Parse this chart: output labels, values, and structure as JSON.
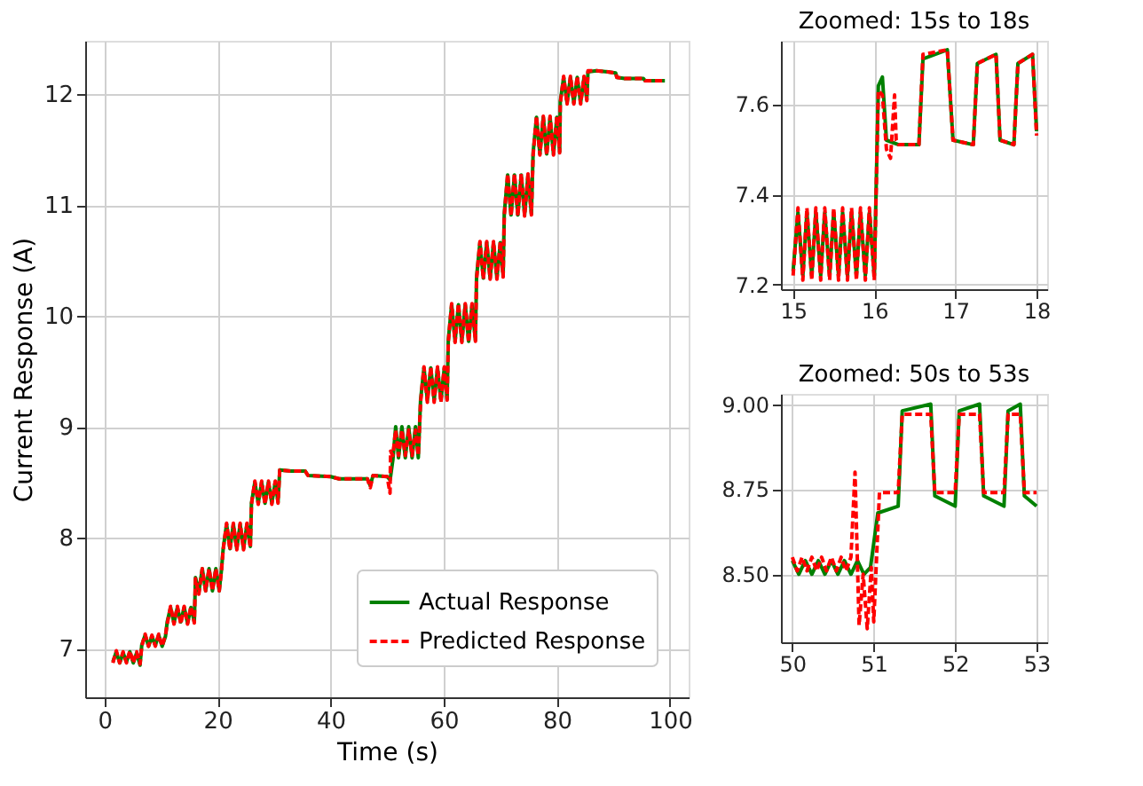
{
  "chart_data": [
    {
      "type": "line",
      "xlabel": "Time (s)",
      "ylabel": "Current Response (A)",
      "xlim": [
        -3.4,
        103.3
      ],
      "ylim": [
        6.56,
        12.48
      ],
      "xticks": [
        0,
        20,
        40,
        60,
        80,
        100
      ],
      "yticks": [
        7,
        8,
        9,
        10,
        11,
        12
      ],
      "grid": true,
      "legend": "bottom right",
      "x": [
        1.5,
        2.1,
        2.7,
        3.3,
        3.9,
        4.5,
        5.1,
        5.7,
        6.3,
        6.6,
        7.2,
        7.8,
        8.4,
        9.0,
        9.6,
        10.2,
        10.8,
        11.1,
        11.7,
        12.3,
        12.9,
        13.5,
        14.1,
        14.7,
        15.3,
        15.9,
        16.1,
        16.7,
        17.3,
        17.9,
        18.5,
        19.1,
        19.7,
        20.3,
        20.7,
        21.0,
        21.6,
        22.2,
        22.8,
        23.4,
        24.0,
        24.6,
        25.2,
        25.8,
        26.0,
        26.6,
        27.2,
        27.8,
        28.4,
        29.0,
        29.6,
        30.2,
        30.7,
        31.0,
        33.0,
        35.5,
        36.0,
        40.0,
        41.5,
        44.0,
        46.5,
        47.0,
        47.5,
        50.0,
        50.5,
        50.6,
        51.0,
        51.5,
        52.0,
        52.6,
        53.2,
        53.8,
        54.4,
        55.0,
        55.5,
        55.9,
        56.5,
        57.1,
        57.7,
        58.3,
        58.9,
        59.5,
        60.1,
        60.6,
        60.8,
        61.4,
        62.0,
        62.6,
        63.2,
        63.8,
        64.4,
        65.0,
        65.6,
        65.8,
        66.4,
        67.0,
        67.6,
        68.2,
        68.8,
        69.4,
        70.0,
        70.5,
        70.7,
        71.3,
        71.9,
        72.5,
        73.1,
        73.7,
        74.3,
        74.9,
        75.5,
        75.8,
        76.4,
        77.0,
        77.6,
        78.2,
        78.8,
        79.4,
        80.0,
        80.5,
        80.6,
        81.2,
        81.8,
        82.4,
        83.0,
        83.6,
        84.2,
        84.8,
        85.3,
        85.5,
        87.0,
        89.0,
        90.4,
        90.6,
        92.0,
        95.3,
        95.6,
        97.0,
        99.1
      ],
      "series": [
        {
          "name": "Actual Response",
          "color": "#008000",
          "line_style": "solid",
          "values": [
            6.88,
            6.97,
            6.87,
            6.96,
            6.88,
            6.97,
            6.87,
            6.96,
            6.85,
            7.03,
            7.12,
            7.02,
            7.11,
            7.03,
            7.12,
            7.02,
            7.11,
            7.24,
            7.37,
            7.23,
            7.37,
            7.24,
            7.37,
            7.23,
            7.37,
            7.24,
            7.64,
            7.51,
            7.72,
            7.52,
            7.72,
            7.52,
            7.72,
            7.52,
            7.71,
            7.9,
            8.12,
            7.9,
            8.12,
            7.9,
            8.12,
            7.9,
            8.12,
            7.92,
            8.31,
            8.5,
            8.31,
            8.5,
            8.31,
            8.5,
            8.31,
            8.5,
            8.32,
            8.61,
            8.6,
            8.6,
            8.56,
            8.55,
            8.53,
            8.53,
            8.53,
            8.47,
            8.56,
            8.55,
            8.52,
            8.55,
            8.7,
            9.0,
            8.72,
            9.0,
            8.72,
            9.0,
            8.72,
            9.0,
            8.72,
            9.24,
            9.53,
            9.24,
            9.53,
            9.24,
            9.53,
            9.24,
            9.53,
            9.25,
            9.78,
            10.1,
            9.77,
            10.1,
            9.77,
            10.1,
            9.77,
            10.1,
            9.78,
            10.35,
            10.66,
            10.34,
            10.66,
            10.34,
            10.66,
            10.34,
            10.66,
            10.36,
            10.92,
            11.27,
            10.91,
            11.27,
            10.91,
            11.27,
            10.91,
            11.27,
            10.92,
            11.47,
            11.79,
            11.46,
            11.79,
            11.46,
            11.79,
            11.46,
            11.79,
            11.48,
            11.93,
            12.15,
            11.92,
            12.15,
            11.92,
            12.15,
            11.92,
            12.15,
            11.95,
            12.2,
            12.21,
            12.2,
            12.19,
            12.15,
            12.14,
            12.14,
            12.12,
            12.12,
            12.12
          ]
        },
        {
          "name": "Predicted Response",
          "color": "#ff0000",
          "line_style": "dashed",
          "values": [
            6.87,
            6.98,
            6.87,
            6.97,
            6.87,
            6.98,
            6.87,
            6.97,
            6.86,
            7.02,
            7.13,
            7.02,
            7.12,
            7.02,
            7.13,
            7.02,
            7.12,
            7.22,
            7.38,
            7.22,
            7.38,
            7.22,
            7.38,
            7.22,
            7.38,
            7.23,
            7.63,
            7.49,
            7.72,
            7.52,
            7.72,
            7.52,
            7.72,
            7.52,
            7.71,
            7.89,
            8.13,
            7.89,
            8.13,
            7.89,
            8.13,
            7.89,
            8.13,
            7.91,
            8.3,
            8.51,
            8.3,
            8.51,
            8.3,
            8.51,
            8.3,
            8.51,
            8.31,
            8.61,
            8.6,
            8.6,
            8.56,
            8.55,
            8.53,
            8.53,
            8.53,
            8.45,
            8.56,
            8.55,
            8.4,
            8.78,
            8.74,
            8.97,
            8.74,
            8.97,
            8.74,
            8.97,
            8.74,
            8.97,
            8.74,
            9.22,
            9.54,
            9.22,
            9.54,
            9.22,
            9.54,
            9.22,
            9.54,
            9.24,
            9.76,
            10.11,
            9.76,
            10.11,
            9.76,
            10.11,
            9.76,
            10.11,
            9.77,
            10.33,
            10.67,
            10.33,
            10.67,
            10.33,
            10.67,
            10.33,
            10.67,
            10.35,
            10.9,
            11.28,
            10.9,
            11.28,
            10.9,
            11.28,
            10.9,
            11.28,
            10.91,
            11.45,
            11.8,
            11.45,
            11.8,
            11.45,
            11.8,
            11.45,
            11.8,
            11.47,
            11.91,
            12.16,
            11.91,
            12.16,
            11.91,
            12.16,
            11.91,
            12.16,
            11.94,
            12.21,
            12.21,
            12.2,
            12.19,
            12.15,
            12.14,
            12.14,
            12.12,
            12.12,
            12.12
          ]
        }
      ]
    },
    {
      "type": "line",
      "title": "Zoomed: 15s to 18s",
      "xlim": [
        14.85,
        18.13
      ],
      "ylim": [
        7.19,
        7.74
      ],
      "xticks": [
        15,
        16,
        17,
        18
      ],
      "yticks": [
        7.2,
        7.4,
        7.6
      ],
      "grid": true,
      "series": [
        {
          "color": "#008000",
          "line_style": "solid",
          "x": [
            15.0,
            15.06,
            15.12,
            15.17,
            15.23,
            15.28,
            15.34,
            15.39,
            15.45,
            15.5,
            15.56,
            15.61,
            15.67,
            15.72,
            15.78,
            15.83,
            15.89,
            15.94,
            16.0,
            16.05,
            16.1,
            16.15,
            16.3,
            16.55,
            16.6,
            16.9,
            16.97,
            17.22,
            17.27,
            17.5,
            17.55,
            17.72,
            17.77,
            17.95,
            18.0
          ],
          "values": [
            7.23,
            7.36,
            7.22,
            7.36,
            7.22,
            7.36,
            7.22,
            7.36,
            7.22,
            7.36,
            7.22,
            7.36,
            7.22,
            7.36,
            7.22,
            7.36,
            7.22,
            7.36,
            7.22,
            7.64,
            7.66,
            7.52,
            7.51,
            7.51,
            7.7,
            7.72,
            7.52,
            7.51,
            7.69,
            7.71,
            7.52,
            7.51,
            7.69,
            7.71,
            7.54
          ]
        },
        {
          "color": "#ff0000",
          "line_style": "dashed",
          "x": [
            15.0,
            15.06,
            15.12,
            15.17,
            15.23,
            15.28,
            15.34,
            15.39,
            15.45,
            15.5,
            15.56,
            15.61,
            15.67,
            15.72,
            15.78,
            15.83,
            15.89,
            15.94,
            16.0,
            16.05,
            16.1,
            16.15,
            16.2,
            16.25,
            16.27,
            16.3,
            16.55,
            16.6,
            16.9,
            16.97,
            17.22,
            17.27,
            17.5,
            17.55,
            17.72,
            17.77,
            17.95,
            18.0
          ],
          "values": [
            7.22,
            7.37,
            7.21,
            7.37,
            7.21,
            7.37,
            7.21,
            7.37,
            7.21,
            7.37,
            7.21,
            7.37,
            7.21,
            7.37,
            7.21,
            7.37,
            7.21,
            7.37,
            7.21,
            7.63,
            7.62,
            7.5,
            7.48,
            7.62,
            7.52,
            7.51,
            7.51,
            7.71,
            7.72,
            7.52,
            7.51,
            7.69,
            7.71,
            7.52,
            7.51,
            7.69,
            7.71,
            7.53
          ]
        }
      ]
    },
    {
      "type": "line",
      "title": "Zoomed: 50s to 53s",
      "xlim": [
        49.86,
        53.13
      ],
      "ylim": [
        8.3,
        9.03
      ],
      "xticks": [
        50,
        51,
        52,
        53
      ],
      "yticks": [
        {
          "value": 8.5,
          "label": "8.50"
        },
        8.75,
        {
          "value": 9.0,
          "label": "9.00"
        }
      ],
      "grid": true,
      "series": [
        {
          "color": "#008000",
          "line_style": "solid",
          "x": [
            50.0,
            50.08,
            50.16,
            50.24,
            50.32,
            50.4,
            50.48,
            50.56,
            50.64,
            50.72,
            50.8,
            50.88,
            50.96,
            51.05,
            51.3,
            51.35,
            51.7,
            51.75,
            52.0,
            52.05,
            52.3,
            52.35,
            52.6,
            52.65,
            52.8,
            52.85,
            53.0
          ],
          "values": [
            8.54,
            8.5,
            8.54,
            8.5,
            8.54,
            8.5,
            8.54,
            8.5,
            8.54,
            8.5,
            8.54,
            8.5,
            8.52,
            8.68,
            8.7,
            8.98,
            9.0,
            8.73,
            8.7,
            8.98,
            9.0,
            8.73,
            8.7,
            8.98,
            9.0,
            8.73,
            8.7
          ]
        },
        {
          "color": "#ff0000",
          "line_style": "dashed",
          "x": [
            50.0,
            50.06,
            50.12,
            50.18,
            50.24,
            50.3,
            50.36,
            50.42,
            50.48,
            50.54,
            50.6,
            50.66,
            50.72,
            50.77,
            50.82,
            50.87,
            50.92,
            50.97,
            51.0,
            51.07,
            51.3,
            51.35,
            51.7,
            51.75,
            52.0,
            52.05,
            52.3,
            52.35,
            52.6,
            52.65,
            52.8,
            52.85,
            53.0
          ],
          "values": [
            8.55,
            8.51,
            8.55,
            8.51,
            8.55,
            8.51,
            8.55,
            8.51,
            8.55,
            8.51,
            8.55,
            8.51,
            8.55,
            8.8,
            8.35,
            8.5,
            8.34,
            8.52,
            8.36,
            8.74,
            8.74,
            8.97,
            8.97,
            8.74,
            8.74,
            8.97,
            8.97,
            8.74,
            8.74,
            8.97,
            8.97,
            8.74,
            8.74
          ]
        }
      ]
    }
  ]
}
